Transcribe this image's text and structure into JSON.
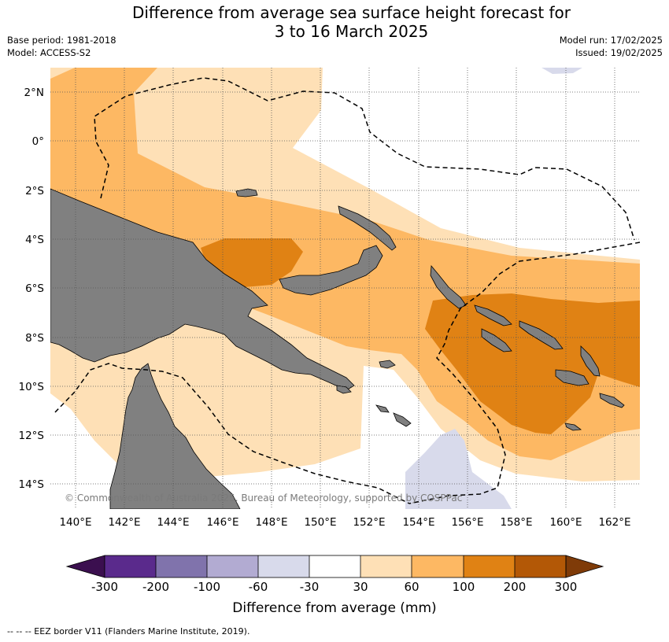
{
  "header": {
    "title_line1": "Difference from average sea surface height forecast for",
    "title_line2": "3 to 16 March 2025",
    "base_period": "Base period: 1981-2018",
    "model": "Model: ACCESS-S2",
    "model_run": "Model run: 17/02/2025",
    "issued": "Issued: 19/02/2025"
  },
  "map": {
    "lon_labels": [
      "140°E",
      "142°E",
      "144°E",
      "146°E",
      "148°E",
      "150°E",
      "152°E",
      "154°E",
      "156°E",
      "158°E",
      "160°E",
      "162°E"
    ],
    "lat_labels": [
      "2°N",
      "0°",
      "2°S",
      "4°S",
      "6°S",
      "8°S",
      "10°S",
      "12°S",
      "14°S"
    ],
    "copyright": "© Commonwealth of Australia 2025, Bureau of Meteorology, supported by COSPPac",
    "land_color": "#808080",
    "eez_line": "dashed black"
  },
  "colorbar": {
    "tick_labels": [
      "-300",
      "-200",
      "-100",
      "-60",
      "-30",
      "30",
      "60",
      "100",
      "200",
      "300"
    ],
    "colors": [
      "#3b0f4f",
      "#5a2a8c",
      "#8073ac",
      "#b2abd2",
      "#d8daeb",
      "#ffffff",
      "#fee0b6",
      "#fdb863",
      "#e08214",
      "#b35806",
      "#7f3b08"
    ],
    "label": "Difference from average (mm)"
  },
  "footnote": "--  --  -- EEZ border V11 (Flanders Marine Institute, 2019)."
}
